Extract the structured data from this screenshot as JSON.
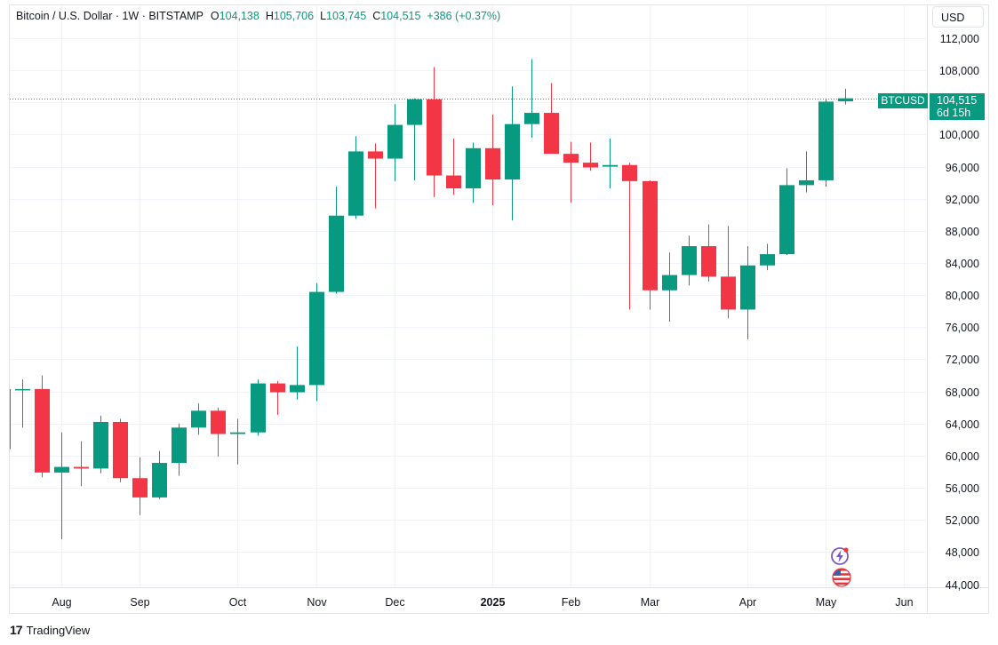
{
  "legend": {
    "symbol_name": "Bitcoin / U.S. Dollar · 1W · BITSTAMP",
    "o_label": "O",
    "o_value": "104,138",
    "h_label": "H",
    "h_value": "105,706",
    "l_label": "L",
    "l_value": "103,745",
    "c_label": "C",
    "c_value": "104,515",
    "change": "+386 (+0.37%)"
  },
  "currency_button": "USD",
  "price_tag": {
    "symbol": "BTCUSD",
    "price": "104,515",
    "countdown": "6d 15h"
  },
  "brand": {
    "logo": "17",
    "name": "TradingView"
  },
  "icons": [
    "event-flash-icon",
    "us-flag-icon"
  ],
  "colors": {
    "up": "#089981",
    "down": "#F23645",
    "grid": "#F0F3FA",
    "axis_text": "#131722"
  },
  "chart_data": {
    "type": "candlestick",
    "interval": "1W",
    "ylim": [
      42000,
      114000
    ],
    "y_ticks": [
      "112,000",
      "108,000",
      "104,000",
      "100,000",
      "96,000",
      "92,000",
      "88,000",
      "84,000",
      "80,000",
      "76,000",
      "72,000",
      "68,000",
      "64,000",
      "60,000",
      "56,000",
      "52,000",
      "48,000",
      "44,000"
    ],
    "x_labels": [
      {
        "label": "Aug",
        "x": 0
      },
      {
        "label": "Sep",
        "x": 4
      },
      {
        "label": "Oct",
        "x": 9
      },
      {
        "label": "Nov",
        "x": 13
      },
      {
        "label": "Dec",
        "x": 17
      },
      {
        "label": "2025",
        "x": 22,
        "bold": true
      },
      {
        "label": "Feb",
        "x": 26
      },
      {
        "label": "Mar",
        "x": 30
      },
      {
        "label": "Apr",
        "x": 35
      },
      {
        "label": "May",
        "x": 39
      },
      {
        "label": "Jun",
        "x": 43
      }
    ],
    "last_price": 104515,
    "candles": [
      {
        "x": -3,
        "o": 60800,
        "h": 68500,
        "l": 60500,
        "c": 68300
      },
      {
        "x": -2,
        "o": 68300,
        "h": 69500,
        "l": 63500,
        "c": 68300
      },
      {
        "x": -1,
        "o": 68300,
        "h": 70000,
        "l": 57300,
        "c": 57900
      },
      {
        "x": 0,
        "o": 57900,
        "h": 62900,
        "l": 49600,
        "c": 58600
      },
      {
        "x": 1,
        "o": 58600,
        "h": 61800,
        "l": 56200,
        "c": 58400
      },
      {
        "x": 2,
        "o": 58400,
        "h": 65000,
        "l": 57800,
        "c": 64200
      },
      {
        "x": 3,
        "o": 64200,
        "h": 64600,
        "l": 56700,
        "c": 57200
      },
      {
        "x": 4,
        "o": 57200,
        "h": 59800,
        "l": 52600,
        "c": 54800
      },
      {
        "x": 5,
        "o": 54800,
        "h": 60600,
        "l": 54600,
        "c": 59100
      },
      {
        "x": 6,
        "o": 59100,
        "h": 64000,
        "l": 57500,
        "c": 63500
      },
      {
        "x": 7,
        "o": 63500,
        "h": 66500,
        "l": 62600,
        "c": 65600
      },
      {
        "x": 8,
        "o": 65600,
        "h": 66000,
        "l": 59900,
        "c": 62700
      },
      {
        "x": 9,
        "o": 62700,
        "h": 64600,
        "l": 58900,
        "c": 62900
      },
      {
        "x": 10,
        "o": 62900,
        "h": 69500,
        "l": 62500,
        "c": 69000
      },
      {
        "x": 11,
        "o": 69000,
        "h": 69300,
        "l": 65100,
        "c": 67900
      },
      {
        "x": 12,
        "o": 67900,
        "h": 73600,
        "l": 67000,
        "c": 68800
      },
      {
        "x": 13,
        "o": 68800,
        "h": 81500,
        "l": 66800,
        "c": 80400
      },
      {
        "x": 14,
        "o": 80400,
        "h": 93500,
        "l": 80200,
        "c": 89900
      },
      {
        "x": 15,
        "o": 89900,
        "h": 99800,
        "l": 89500,
        "c": 97900
      },
      {
        "x": 16,
        "o": 97900,
        "h": 98900,
        "l": 90800,
        "c": 97000
      },
      {
        "x": 17,
        "o": 97000,
        "h": 103800,
        "l": 94200,
        "c": 101200
      },
      {
        "x": 18,
        "o": 101200,
        "h": 104500,
        "l": 94300,
        "c": 104400
      },
      {
        "x": 19,
        "o": 104400,
        "h": 108400,
        "l": 92200,
        "c": 94900
      },
      {
        "x": 20,
        "o": 94900,
        "h": 99500,
        "l": 92500,
        "c": 93300
      },
      {
        "x": 21,
        "o": 93300,
        "h": 99000,
        "l": 91500,
        "c": 98300
      },
      {
        "x": 22,
        "o": 98300,
        "h": 102500,
        "l": 91200,
        "c": 94400
      },
      {
        "x": 23,
        "o": 94400,
        "h": 106000,
        "l": 89300,
        "c": 101300
      },
      {
        "x": 24,
        "o": 101300,
        "h": 109400,
        "l": 99600,
        "c": 102700
      },
      {
        "x": 25,
        "o": 102700,
        "h": 106400,
        "l": 97700,
        "c": 97600
      },
      {
        "x": 26,
        "o": 97600,
        "h": 99100,
        "l": 91500,
        "c": 96500
      },
      {
        "x": 27,
        "o": 96500,
        "h": 99000,
        "l": 95500,
        "c": 95900
      },
      {
        "x": 28,
        "o": 96000,
        "h": 99500,
        "l": 93300,
        "c": 96200
      },
      {
        "x": 29,
        "o": 96200,
        "h": 96500,
        "l": 78200,
        "c": 94200
      },
      {
        "x": 30,
        "o": 94200,
        "h": 94300,
        "l": 78200,
        "c": 80600
      },
      {
        "x": 31,
        "o": 80600,
        "h": 85300,
        "l": 76700,
        "c": 82500
      },
      {
        "x": 32,
        "o": 82500,
        "h": 87400,
        "l": 81200,
        "c": 86100
      },
      {
        "x": 33,
        "o": 86100,
        "h": 88800,
        "l": 81700,
        "c": 82300
      },
      {
        "x": 34,
        "o": 82300,
        "h": 88600,
        "l": 77100,
        "c": 78200
      },
      {
        "x": 35,
        "o": 78200,
        "h": 86100,
        "l": 74500,
        "c": 83700
      },
      {
        "x": 36,
        "o": 83700,
        "h": 86400,
        "l": 83100,
        "c": 85100
      },
      {
        "x": 37,
        "o": 85100,
        "h": 95800,
        "l": 85000,
        "c": 93700
      },
      {
        "x": 38,
        "o": 93700,
        "h": 97900,
        "l": 92800,
        "c": 94300
      },
      {
        "x": 39,
        "o": 94300,
        "h": 104500,
        "l": 93500,
        "c": 104100
      },
      {
        "x": 40,
        "o": 104138,
        "h": 105706,
        "l": 103745,
        "c": 104515
      }
    ]
  }
}
